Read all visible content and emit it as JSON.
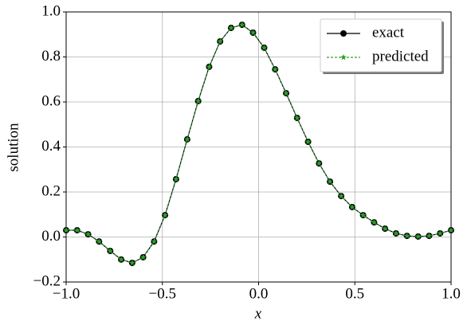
{
  "chart_data": {
    "type": "line",
    "xlabel": "x",
    "ylabel": "solution",
    "x": [
      -1.0,
      -0.943,
      -0.886,
      -0.829,
      -0.771,
      -0.714,
      -0.657,
      -0.6,
      -0.543,
      -0.486,
      -0.429,
      -0.371,
      -0.314,
      -0.257,
      -0.2,
      -0.143,
      -0.086,
      -0.029,
      0.029,
      0.086,
      0.143,
      0.2,
      0.257,
      0.314,
      0.371,
      0.429,
      0.486,
      0.543,
      0.6,
      0.657,
      0.714,
      0.771,
      0.829,
      0.886,
      0.943,
      1.0
    ],
    "series": [
      {
        "name": "exact",
        "color": "#000000",
        "marker": "circle",
        "linestyle": "solid",
        "values": [
          0.03,
          0.03,
          0.012,
          -0.02,
          -0.062,
          -0.1,
          -0.115,
          -0.09,
          -0.02,
          0.097,
          0.257,
          0.434,
          0.604,
          0.756,
          0.869,
          0.929,
          0.943,
          0.908,
          0.841,
          0.745,
          0.639,
          0.529,
          0.423,
          0.327,
          0.246,
          0.182,
          0.133,
          0.097,
          0.065,
          0.037,
          0.016,
          0.005,
          0.002,
          0.005,
          0.016,
          0.03
        ]
      },
      {
        "name": "predicted",
        "color": "#2ca02c",
        "marker": "star",
        "linestyle": "dashed",
        "values": [
          0.03,
          0.03,
          0.012,
          -0.02,
          -0.062,
          -0.1,
          -0.115,
          -0.09,
          -0.02,
          0.097,
          0.257,
          0.434,
          0.604,
          0.756,
          0.869,
          0.929,
          0.943,
          0.908,
          0.841,
          0.745,
          0.639,
          0.529,
          0.423,
          0.327,
          0.246,
          0.182,
          0.133,
          0.097,
          0.065,
          0.037,
          0.016,
          0.005,
          0.002,
          0.005,
          0.016,
          0.03
        ]
      }
    ],
    "xlim": [
      -1,
      1
    ],
    "xticks": [
      {
        "value": -1,
        "label": "−1.0"
      },
      {
        "value": -0.5,
        "label": "−0.5"
      },
      {
        "value": 0,
        "label": "0.0"
      },
      0.5,
      {
        "value": 1,
        "label": "1.0"
      }
    ],
    "ylim": [
      -0.2,
      1
    ],
    "yticks": [
      {
        "value": -0.2,
        "label": "−0.2"
      },
      {
        "value": 0,
        "label": "0.0"
      },
      0.2,
      0.4,
      0.6,
      0.8,
      {
        "value": 1,
        "label": "1.0"
      }
    ],
    "grid": true,
    "legend": "upper right"
  }
}
